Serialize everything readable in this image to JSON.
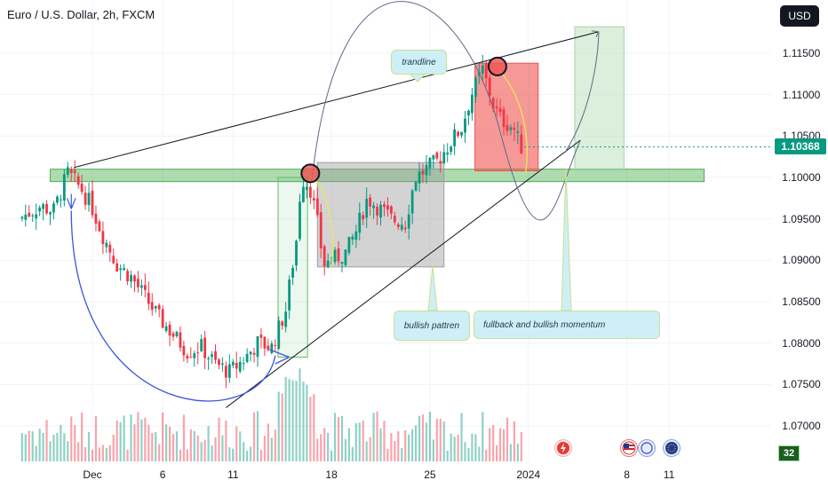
{
  "header": {
    "title": "Euro / U.S. Dollar, 2h, FXCM",
    "currency_button": "USD"
  },
  "chart_data": {
    "type": "candlestick",
    "symbol": "EUR/USD",
    "timeframe": "2h",
    "source": "FXCM",
    "current_price": "1.10368",
    "ylim": [
      1.0658,
      1.121
    ],
    "y_ticks": [
      {
        "label": "1.11500",
        "value": 1.115
      },
      {
        "label": "1.11000",
        "value": 1.11
      },
      {
        "label": "1.10500",
        "value": 1.105
      },
      {
        "label": "1.10000",
        "value": 1.1
      },
      {
        "label": "1.09500",
        "value": 1.095
      },
      {
        "label": "1.09000",
        "value": 1.09
      },
      {
        "label": "1.08500",
        "value": 1.085
      },
      {
        "label": "1.08000",
        "value": 1.08
      },
      {
        "label": "1.07500",
        "value": 1.075
      },
      {
        "label": "1.07000",
        "value": 1.07
      }
    ],
    "x_ticks": [
      {
        "label": "Dec",
        "day": 1
      },
      {
        "label": "6",
        "day": 6
      },
      {
        "label": "11",
        "day": 11
      },
      {
        "label": "18",
        "day": 18
      },
      {
        "label": "25",
        "day": 25
      },
      {
        "label": "2024",
        "day": 32
      },
      {
        "label": "8",
        "day": 39
      },
      {
        "label": "11",
        "day": 42
      }
    ],
    "price_path": [
      {
        "day": -4.0,
        "price": 1.095
      },
      {
        "day": -2.5,
        "price": 1.0965
      },
      {
        "day": -1.5,
        "price": 1.096
      },
      {
        "day": -0.5,
        "price": 1.1005
      },
      {
        "day": 0.5,
        "price": 1.0985
      },
      {
        "day": 1.2,
        "price": 1.0965
      },
      {
        "day": 2.0,
        "price": 1.093
      },
      {
        "day": 3.0,
        "price": 1.0895
      },
      {
        "day": 4.0,
        "price": 1.088
      },
      {
        "day": 5.0,
        "price": 1.0855
      },
      {
        "day": 6.0,
        "price": 1.083
      },
      {
        "day": 7.0,
        "price": 1.081
      },
      {
        "day": 8.0,
        "price": 1.079
      },
      {
        "day": 9.0,
        "price": 1.0795
      },
      {
        "day": 10.0,
        "price": 1.0775
      },
      {
        "day": 11.0,
        "price": 1.0765
      },
      {
        "day": 12.0,
        "price": 1.078
      },
      {
        "day": 13.0,
        "price": 1.08
      },
      {
        "day": 14.0,
        "price": 1.0795
      },
      {
        "day": 15.0,
        "price": 1.084
      },
      {
        "day": 15.8,
        "price": 1.093
      },
      {
        "day": 16.1,
        "price": 1.1
      },
      {
        "day": 16.7,
        "price": 1.099
      },
      {
        "day": 17.2,
        "price": 1.095
      },
      {
        "day": 17.7,
        "price": 1.0895
      },
      {
        "day": 18.3,
        "price": 1.09
      },
      {
        "day": 19.3,
        "price": 1.091
      },
      {
        "day": 20.0,
        "price": 1.0935
      },
      {
        "day": 20.8,
        "price": 1.0975
      },
      {
        "day": 21.5,
        "price": 1.0965
      },
      {
        "day": 22.5,
        "price": 1.095
      },
      {
        "day": 23.5,
        "price": 1.0945
      },
      {
        "day": 24.2,
        "price": 1.1
      },
      {
        "day": 25.0,
        "price": 1.101
      },
      {
        "day": 25.8,
        "price": 1.102
      },
      {
        "day": 26.8,
        "price": 1.1045
      },
      {
        "day": 27.5,
        "price": 1.106
      },
      {
        "day": 28.2,
        "price": 1.11
      },
      {
        "day": 29.0,
        "price": 1.113
      },
      {
        "day": 29.8,
        "price": 1.1085
      },
      {
        "day": 30.3,
        "price": 1.107
      },
      {
        "day": 31.2,
        "price": 1.106
      },
      {
        "day": 31.7,
        "price": 1.1037
      }
    ],
    "drawings": [
      {
        "name": "support-zone",
        "kind": "zone",
        "price_low": 1.0995,
        "price_high": 1.101,
        "day_from": -2.0,
        "day_to": 44.5,
        "color": "#4caf50"
      },
      {
        "name": "upper-trendline",
        "kind": "line",
        "from": {
          "day": -0.3,
          "price": 1.1012
        },
        "to": {
          "day": 37.0,
          "price": 1.1176
        },
        "color": "#131722"
      },
      {
        "name": "lower-trendline",
        "kind": "line",
        "from": {
          "day": 10.5,
          "price": 1.0722
        },
        "to": {
          "day": 35.7,
          "price": 1.1045
        },
        "color": "#131722"
      },
      {
        "name": "buy-zone-gray",
        "kind": "box",
        "day_from": 17.0,
        "day_to": 26.0,
        "price_low": 1.0892,
        "price_high": 1.1018,
        "color": "#9e9e9e"
      },
      {
        "name": "sell-zone-red",
        "kind": "box",
        "day_from": 28.2,
        "day_to": 32.7,
        "price_low": 1.1008,
        "price_high": 1.1138,
        "color": "#ef5350"
      },
      {
        "name": "target-zone-green",
        "kind": "box",
        "day_from": 35.3,
        "day_to": 38.8,
        "price_low": 1.1008,
        "price_high": 1.1182,
        "color": "#a5d6a7"
      },
      {
        "name": "green-step-box",
        "kind": "box",
        "day_from": 14.2,
        "day_to": 16.3,
        "price_low": 1.0783,
        "price_high": 1.1,
        "color": "#66bb6a"
      }
    ],
    "markers": [
      {
        "name": "swing-high-circle",
        "day": 16.5,
        "price": 1.1005
      },
      {
        "name": "peak-circle",
        "day": 29.8,
        "price": 1.1134
      }
    ],
    "annotations": [
      {
        "name": "trandline-callout",
        "text": "trandline"
      },
      {
        "name": "bullish-pattern-callout",
        "text": "bullish pattren"
      },
      {
        "name": "fullback-callout",
        "text": "fullback and bullish momentum"
      }
    ],
    "volume_badge": "32",
    "colors": {
      "up": "#089981",
      "down": "#f23645",
      "trend_arrow": "#3b57d9"
    }
  }
}
